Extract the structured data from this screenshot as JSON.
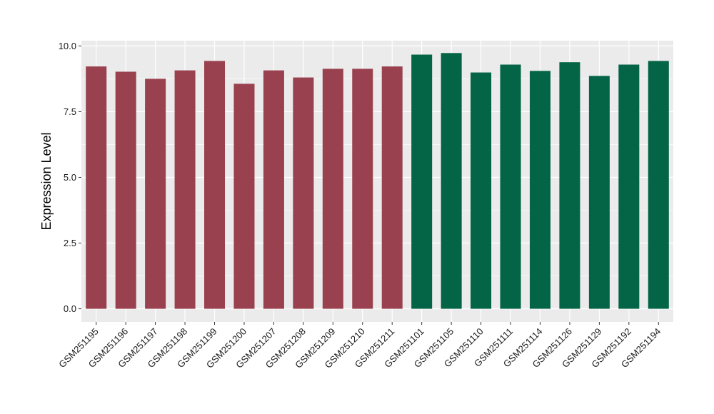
{
  "chart_data": {
    "type": "bar",
    "title": "",
    "xlabel": "",
    "ylabel": "Expression Level",
    "ylim": [
      -0.5,
      10.2
    ],
    "yticks": [
      0.0,
      2.5,
      5.0,
      7.5,
      10.0
    ],
    "ytick_labels": [
      "0.0",
      "2.5",
      "5.0",
      "7.5",
      "10.0"
    ],
    "grid": true,
    "legend": "none",
    "categories": [
      "GSM251195",
      "GSM251196",
      "GSM251197",
      "GSM251198",
      "GSM251199",
      "GSM251200",
      "GSM251207",
      "GSM251208",
      "GSM251209",
      "GSM251210",
      "GSM251211",
      "GSM251101",
      "GSM251105",
      "GSM251110",
      "GSM251111",
      "GSM251114",
      "GSM251126",
      "GSM251129",
      "GSM251192",
      "GSM251194"
    ],
    "values": [
      9.22,
      9.02,
      8.75,
      9.07,
      9.43,
      8.56,
      9.07,
      8.8,
      9.13,
      9.13,
      9.22,
      9.67,
      9.73,
      8.99,
      9.29,
      9.05,
      9.38,
      8.86,
      9.29,
      9.43
    ],
    "group_index": [
      0,
      0,
      0,
      0,
      0,
      0,
      0,
      0,
      0,
      0,
      0,
      1,
      1,
      1,
      1,
      1,
      1,
      1,
      1,
      1
    ],
    "group_colors": [
      "#99414f",
      "#036446"
    ],
    "background_color": "#ebebeb",
    "grid_color": "#ffffff"
  }
}
